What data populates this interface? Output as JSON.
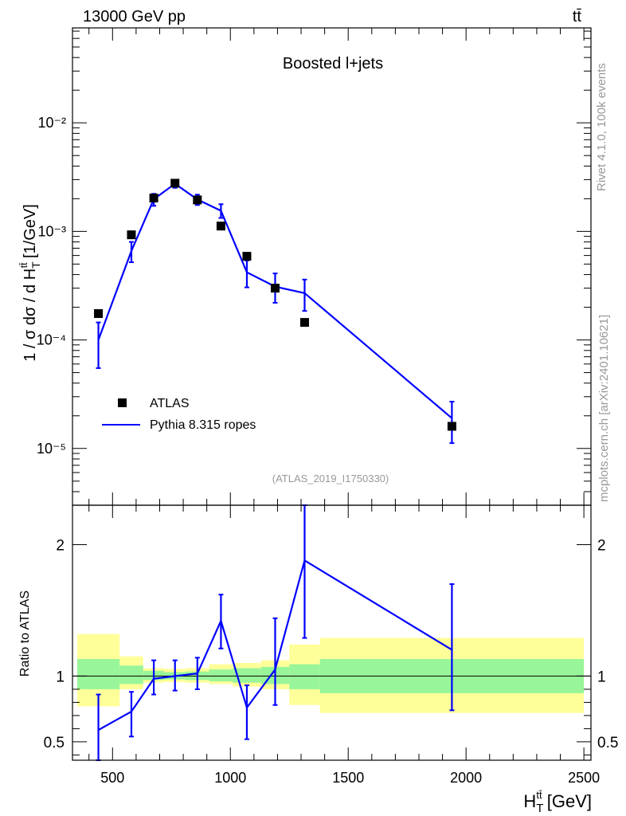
{
  "header": {
    "left": "13000 GeV pp",
    "right": "tt̄"
  },
  "side_text": {
    "rivet": "Rivet 4.1.0,  100k events",
    "mcplots": "mcplots.cern.ch [arXiv:2401.10621]"
  },
  "colors": {
    "mc": "#0000ff",
    "data": "#000000",
    "band_inner": "#99f599",
    "band_outer": "#ffff99",
    "analysis_label": "#999999"
  },
  "chart_data": [
    {
      "type": "scatter",
      "panel": "main",
      "title": "Boosted l+jets",
      "analysis_label": "(ATLAS_2019_I1750330)",
      "ylabel": "1 / σ dσ / d H_T^{tt̄} [1/GeV]",
      "yscale": "log",
      "xlim": [
        330,
        2530
      ],
      "ylim": [
        3e-06,
        0.075
      ],
      "y_ticks": [
        {
          "value": 1e-05,
          "label": "10⁻⁵"
        },
        {
          "value": 0.0001,
          "label": "10⁻⁴"
        },
        {
          "value": 0.001,
          "label": "10⁻³"
        },
        {
          "value": 0.01,
          "label": "10⁻²"
        }
      ],
      "legend_position": "lower-left",
      "series": [
        {
          "name": "ATLAS",
          "kind": "markers",
          "x": [
            440,
            580,
            675,
            765,
            860,
            960,
            1070,
            1190,
            1315,
            1940
          ],
          "y": [
            0.000175,
            0.00093,
            0.00203,
            0.00278,
            0.00195,
            0.00112,
            0.00059,
            0.0003,
            0.000145,
            1.6e-05
          ]
        },
        {
          "name": "Pythia 8.315 ropes",
          "kind": "line",
          "x": [
            440,
            580,
            675,
            765,
            860,
            960,
            1070,
            1190,
            1315,
            1940
          ],
          "y": [
            0.0001,
            0.00066,
            0.00198,
            0.00275,
            0.00197,
            0.00155,
            0.00042,
            0.00031,
            0.00027,
            1.9e-05
          ],
          "err_low": [
            5.5e-05,
            0.00052,
            0.00172,
            0.00252,
            0.00175,
            0.00133,
            0.000305,
            0.00022,
            0.000185,
            1.12e-05
          ],
          "err_high": [
            0.000145,
            0.0008,
            0.00222,
            0.00298,
            0.00218,
            0.00178,
            0.00054,
            0.00041,
            0.00036,
            2.7e-05
          ]
        }
      ]
    },
    {
      "type": "line",
      "panel": "ratio",
      "ylabel": "Ratio to ATLAS",
      "xlabel": "H_T^{tt̄} [GeV]",
      "xlim": [
        330,
        2530
      ],
      "ylim": [
        0.36,
        2.3
      ],
      "reference": 1,
      "x_ticks": [
        500,
        1000,
        1500,
        2000,
        2500
      ],
      "y_ticks": [
        {
          "value": 0.5,
          "label": "0.5"
        },
        {
          "value": 1,
          "label": "1"
        },
        {
          "value": 2,
          "label": "2"
        }
      ],
      "bands": [
        {
          "x0": 350,
          "x1": 530,
          "inner": [
            0.9,
            1.13
          ],
          "outer": [
            0.77,
            1.32
          ]
        },
        {
          "x0": 530,
          "x1": 630,
          "inner": [
            0.94,
            1.08
          ],
          "outer": [
            0.9,
            1.15
          ]
        },
        {
          "x0": 630,
          "x1": 720,
          "inner": [
            0.97,
            1.04
          ],
          "outer": [
            0.95,
            1.06
          ]
        },
        {
          "x0": 720,
          "x1": 810,
          "inner": [
            0.975,
            1.03
          ],
          "outer": [
            0.955,
            1.055
          ]
        },
        {
          "x0": 810,
          "x1": 910,
          "inner": [
            0.97,
            1.035
          ],
          "outer": [
            0.95,
            1.06
          ]
        },
        {
          "x0": 910,
          "x1": 1010,
          "inner": [
            0.96,
            1.05
          ],
          "outer": [
            0.94,
            1.09
          ]
        },
        {
          "x0": 1010,
          "x1": 1130,
          "inner": [
            0.95,
            1.06
          ],
          "outer": [
            0.92,
            1.1
          ]
        },
        {
          "x0": 1130,
          "x1": 1250,
          "inner": [
            0.94,
            1.07
          ],
          "outer": [
            0.9,
            1.12
          ]
        },
        {
          "x0": 1250,
          "x1": 1380,
          "inner": [
            0.9,
            1.09
          ],
          "outer": [
            0.78,
            1.24
          ]
        },
        {
          "x0": 1380,
          "x1": 2500,
          "inner": [
            0.87,
            1.13
          ],
          "outer": [
            0.72,
            1.29
          ]
        }
      ],
      "series": [
        {
          "name": "Pythia 8.315 ropes / ATLAS",
          "x": [
            440,
            580,
            675,
            765,
            860,
            960,
            1070,
            1190,
            1315,
            1940
          ],
          "y": [
            0.59,
            0.73,
            0.98,
            1.0,
            1.02,
            1.42,
            0.76,
            1.05,
            1.88,
            1.2
          ],
          "err_low": [
            0.3,
            0.54,
            0.86,
            0.89,
            0.9,
            1.21,
            0.52,
            0.78,
            1.29,
            0.74
          ],
          "err_high": [
            0.86,
            0.88,
            1.12,
            1.12,
            1.14,
            1.62,
            0.93,
            1.44,
            2.3,
            1.7
          ]
        }
      ]
    }
  ]
}
